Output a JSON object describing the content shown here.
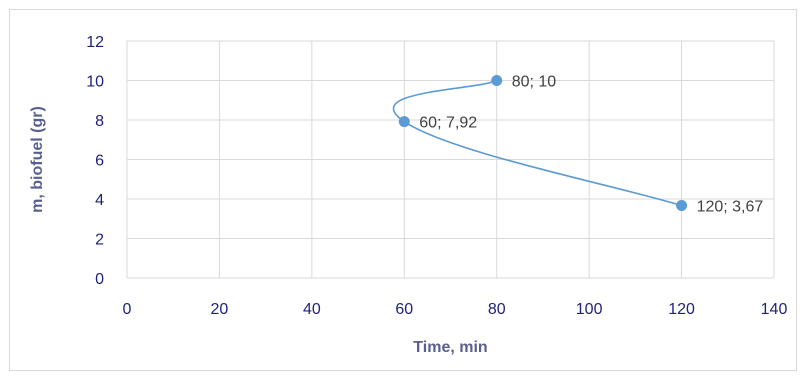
{
  "chart_data": {
    "type": "scatter",
    "title": "",
    "xlabel": "Time, min",
    "ylabel": "m, biofuel (gr)",
    "xlim": [
      0,
      140
    ],
    "ylim": [
      0,
      12
    ],
    "x_ticks": [
      "0",
      "20",
      "40",
      "60",
      "80",
      "100",
      "120",
      "140"
    ],
    "y_ticks": [
      "0",
      "2",
      "4",
      "6",
      "8",
      "10",
      "12"
    ],
    "grid": true,
    "smooth_line": true,
    "series": [
      {
        "points": [
          {
            "x": 80,
            "y": 10,
            "label": "80; 10"
          },
          {
            "x": 60,
            "y": 7.92,
            "label": "60; 7,92"
          },
          {
            "x": 120,
            "y": 3.67,
            "label": "120; 3,67"
          }
        ]
      }
    ],
    "colors": {
      "series": "#5b9bd5",
      "grid": "#d9d9d9",
      "tick_text": "#1f1f7a",
      "axis_title": "#595f8f",
      "data_label": "#404040"
    }
  }
}
